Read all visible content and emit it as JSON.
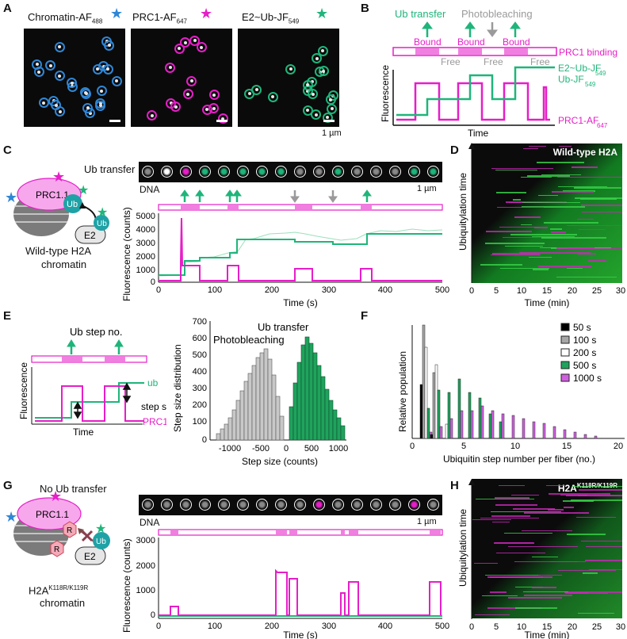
{
  "panels": [
    "A",
    "B",
    "C",
    "D",
    "E",
    "F",
    "G",
    "H"
  ],
  "panel_a": {
    "titles": [
      "Chromatin-AF",
      "PRC1-AF",
      "E2~Ub-JF"
    ],
    "subs": [
      "488",
      "647",
      "549"
    ],
    "scale": "1 µm"
  },
  "panel_b": {
    "ub_transfer": "Ub transfer",
    "photobleaching": "Photobleaching",
    "bound": [
      "Bound",
      "Bound",
      "Bound"
    ],
    "free": [
      "Free",
      "Free",
      "Free"
    ],
    "prc1_binding": "PRC1 binding",
    "e2_label": "E2~Ub-JF",
    "e2_sub": "549",
    "ub_label": "Ub-JF",
    "ub_sub": "549",
    "prc1_label": "PRC1-AF",
    "prc1_sub": "647",
    "ylabel": "Fluorescence",
    "xlabel": "Time"
  },
  "panel_c": {
    "ub_transfer": "Ub transfer",
    "prc": "PRC1.1",
    "ub": "Ub",
    "e2": "E2",
    "caption1": "Wild-type H2A",
    "caption2": "chromatin",
    "dna": "DNA",
    "scale": "1 µm",
    "ylabel": "Fluorescence (counts)",
    "xlabel": "Time (s)",
    "yticks": [
      "5000",
      "4000",
      "3000",
      "2000",
      "1000",
      "0"
    ],
    "xticks": [
      "0",
      "100",
      "200",
      "300",
      "400",
      "500"
    ]
  },
  "panel_d": {
    "title": "Wild-type H2A",
    "ylabel": "Ubiquitylation time",
    "xlabel": "Time (min)",
    "xticks": [
      "0",
      "5",
      "10",
      "15",
      "20",
      "25",
      "30"
    ]
  },
  "panel_e": {
    "ub_step": "Ub step no.",
    "ylabel": "Fluorescence",
    "xlabel": "Time",
    "ub": "ub",
    "step_size": "step size",
    "prc1": "PRC1",
    "hist_photo": "Photobleaching",
    "hist_ub": "Ub transfer",
    "hist_ylabel": "Step size distribution",
    "hist_xlabel": "Step size (counts)",
    "hist_yticks": [
      "700",
      "600",
      "500",
      "400",
      "300",
      "200",
      "100",
      "0"
    ],
    "hist_xticks": [
      "-1000",
      "-500",
      "0",
      "500",
      "1000"
    ]
  },
  "panel_f": {
    "ylabel": "Relative population",
    "xlabel": "Ubiquitin step number per fiber (no.)",
    "xticks": [
      "0",
      "5",
      "10",
      "15",
      "20"
    ],
    "legend": [
      "50 s",
      "100 s",
      "200 s",
      "500 s",
      "1000 s"
    ],
    "legend_colors": [
      "#000000",
      "#a6a6a6",
      "#ffffff",
      "#1fa35c",
      "#d060e0"
    ]
  },
  "panel_g": {
    "no_transfer": "No Ub transfer",
    "prc": "PRC1.1",
    "ub": "Ub",
    "e2": "E2",
    "r": "R",
    "caption1": "H2A",
    "caption_sup": "K118R/K119R",
    "caption2": "chromatin",
    "dna": "DNA",
    "scale": "1 µm",
    "ylabel": "Fluorescence (counts)",
    "xlabel": "Time (s)",
    "yticks": [
      "3000",
      "2000",
      "1000",
      "0"
    ],
    "xticks": [
      "0",
      "100",
      "200",
      "300",
      "400",
      "500"
    ]
  },
  "panel_h": {
    "title": "H2A",
    "title_sup": "K118R/K119R",
    "ylabel": "Ubiquitylation time",
    "xlabel": "Time (min)",
    "xticks": [
      "0",
      "5",
      "10",
      "15",
      "20",
      "25",
      "30"
    ]
  },
  "colors": {
    "magenta": "#e61ec8",
    "green": "#1fb57a",
    "blue": "#2f86d6",
    "gray": "#9a9a9a"
  }
}
